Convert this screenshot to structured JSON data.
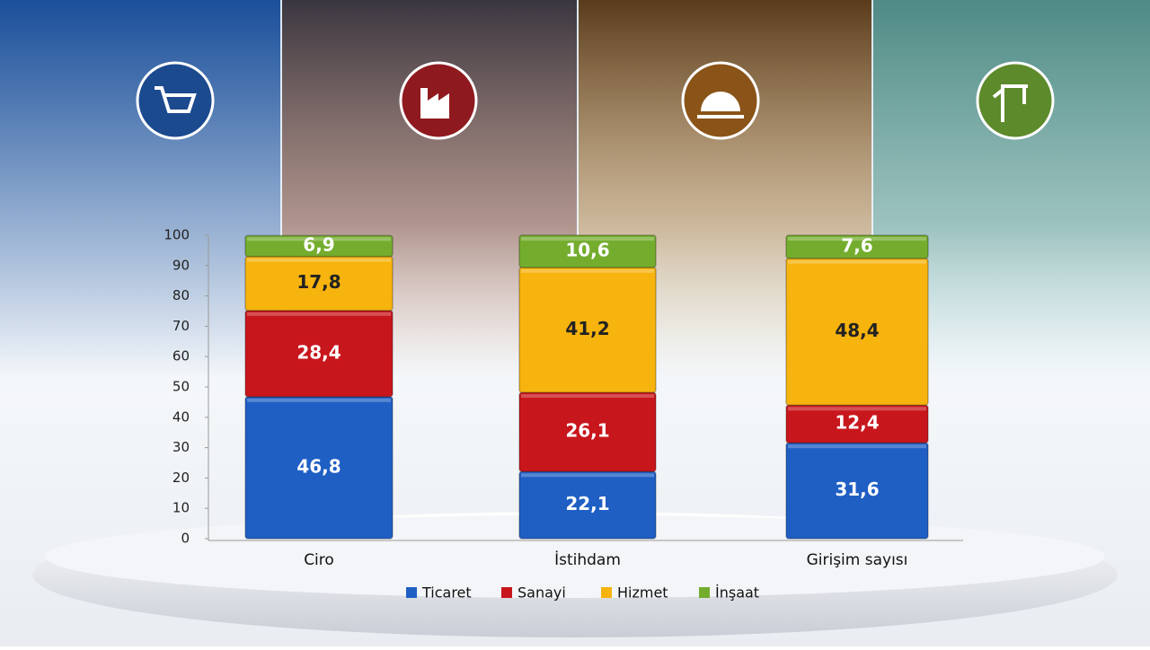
{
  "chart_data": {
    "type": "stacked_bar",
    "categories": [
      "Ciro",
      "İstihdam",
      "Girişim sayısı"
    ],
    "series": [
      {
        "name": "Ticaret",
        "color": "#1f5fc4",
        "values": [
          46.8,
          22.1,
          31.6
        ],
        "value_labels": [
          "46,8",
          "22,1",
          "31,6"
        ]
      },
      {
        "name": "Sanayi",
        "color": "#c8161d",
        "values": [
          28.4,
          26.1,
          12.4
        ],
        "value_labels": [
          "28,4",
          "26,1",
          "12,4"
        ]
      },
      {
        "name": "Hizmet",
        "color": "#f7b30e",
        "values": [
          17.8,
          41.2,
          48.4
        ],
        "value_labels": [
          "17,8",
          "41,2",
          "48,4"
        ]
      },
      {
        "name": "İnşaat",
        "color": "#74ad2e",
        "values": [
          6.9,
          10.6,
          7.6
        ],
        "value_labels": [
          "6,9",
          "10,6",
          "7,6"
        ]
      }
    ],
    "ylim": [
      0,
      100
    ],
    "yticks": [
      0,
      10,
      20,
      30,
      40,
      50,
      60,
      70,
      80,
      90,
      100
    ]
  }
}
